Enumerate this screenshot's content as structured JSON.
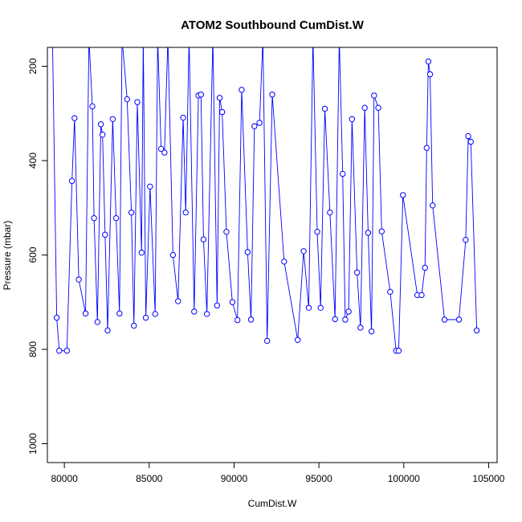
{
  "chart_data": {
    "type": "line",
    "title": "ATOM2 Southbound CumDist.W",
    "xlabel": "CumDist.W",
    "ylabel": "Pressure (mbar)",
    "xlim": [
      79000,
      105500
    ],
    "ylim": [
      1040,
      160
    ],
    "y_reversed": true,
    "xticks": [
      80000,
      85000,
      90000,
      95000,
      100000,
      105000
    ],
    "yticks": [
      200,
      400,
      600,
      800,
      1000
    ],
    "grid": false,
    "legend": "none",
    "series_color": "#0000ff",
    "series": [
      {
        "x": [
          79300,
          79550,
          79700,
          80150,
          80450,
          80600,
          80850,
          81250,
          81450,
          81650,
          81750,
          81950,
          82150,
          82250,
          82400,
          82550,
          82850,
          83050,
          83250,
          83400,
          83700,
          83950,
          84100,
          84300,
          84550,
          84650,
          84800,
          85050,
          85350,
          85500,
          85700,
          85900,
          86100,
          86400,
          86700,
          87000,
          87150,
          87350,
          87650,
          87900,
          88050,
          88200,
          88400,
          88750,
          89000,
          89150,
          89300,
          89550,
          89900,
          90200,
          90450,
          90800,
          91000,
          91200,
          91500,
          91700,
          91950,
          92250,
          92950,
          93750,
          94100,
          94400,
          94650,
          94900,
          95100,
          95350,
          95650,
          95950,
          96200,
          96400,
          96550,
          96750,
          96950,
          97250,
          97450,
          97700,
          97900,
          98100,
          98250,
          98500,
          98700,
          99200,
          99550,
          99700,
          99950,
          100800,
          101050,
          101250,
          101350,
          101450,
          101550,
          101700,
          102400,
          103250,
          103650,
          103800,
          103950,
          104300
        ],
        "y": [
          140,
          733,
          803,
          803,
          443,
          310,
          652,
          724,
          140,
          285,
          522,
          742,
          323,
          345,
          557,
          760,
          312,
          522,
          724,
          140,
          270,
          510,
          750,
          276,
          595,
          140,
          733,
          455,
          725,
          140,
          375,
          383,
          140,
          600,
          698,
          309,
          510,
          140,
          720,
          262,
          260,
          567,
          725,
          140,
          707,
          267,
          297,
          551,
          700,
          738,
          250,
          594,
          737,
          327,
          320,
          140,
          782,
          260,
          614,
          780,
          592,
          712,
          140,
          551,
          712,
          290,
          510,
          736,
          140,
          428,
          737,
          720,
          312,
          637,
          754,
          288,
          553,
          762,
          262,
          288,
          550,
          678,
          803,
          803,
          473,
          685,
          685,
          627,
          373,
          190,
          217,
          495,
          737,
          737,
          568,
          348,
          360,
          760
        ]
      }
    ]
  }
}
